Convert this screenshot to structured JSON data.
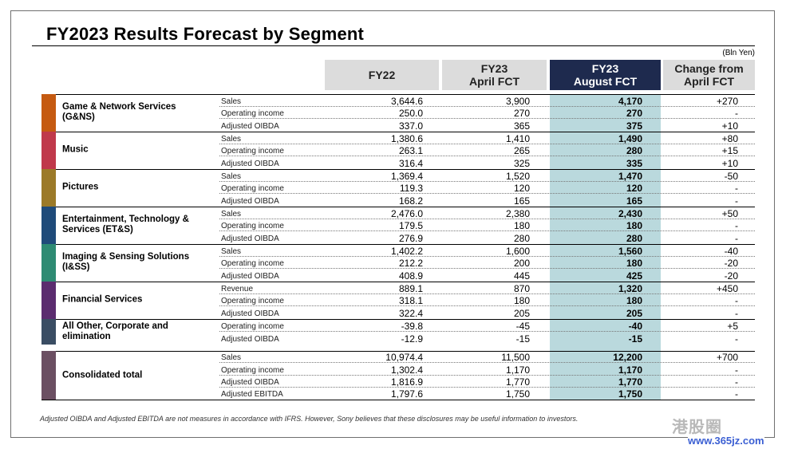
{
  "title": "FY2023 Results Forecast by Segment",
  "unit": "(Bln Yen)",
  "headers": {
    "fy22": "FY22",
    "apr_line1": "FY23",
    "apr_line2": "April FCT",
    "aug_line1": "FY23",
    "aug_line2": "August FCT",
    "chg_line1": "Change from",
    "chg_line2": "April FCT"
  },
  "colors": {
    "header_gray": "#dcdcdc",
    "header_navy": "#1e2a4e",
    "highlight_column": "#bad9dd"
  },
  "segments": [
    {
      "name_line1": "Game & Network Services",
      "name_line2": "(G&NS)",
      "color": "#c55a11",
      "rows": [
        {
          "label": "Sales",
          "fy22": "3,644.6",
          "apr": "3,900",
          "aug": "4,170",
          "chg": "+270"
        },
        {
          "label": "Operating income",
          "fy22": "250.0",
          "apr": "270",
          "aug": "270",
          "chg": "-"
        },
        {
          "label": "Adjusted OIBDA",
          "fy22": "337.0",
          "apr": "365",
          "aug": "375",
          "chg": "+10"
        }
      ]
    },
    {
      "name_line1": "Music",
      "name_line2": "",
      "color": "#c0394b",
      "rows": [
        {
          "label": "Sales",
          "fy22": "1,380.6",
          "apr": "1,410",
          "aug": "1,490",
          "chg": "+80"
        },
        {
          "label": "Operating income",
          "fy22": "263.1",
          "apr": "265",
          "aug": "280",
          "chg": "+15"
        },
        {
          "label": "Adjusted OIBDA",
          "fy22": "316.4",
          "apr": "325",
          "aug": "335",
          "chg": "+10"
        }
      ]
    },
    {
      "name_line1": "Pictures",
      "name_line2": "",
      "color": "#9c7a28",
      "rows": [
        {
          "label": "Sales",
          "fy22": "1,369.4",
          "apr": "1,520",
          "aug": "1,470",
          "chg": "-50"
        },
        {
          "label": "Operating income",
          "fy22": "119.3",
          "apr": "120",
          "aug": "120",
          "chg": "-"
        },
        {
          "label": "Adjusted OIBDA",
          "fy22": "168.2",
          "apr": "165",
          "aug": "165",
          "chg": "-"
        }
      ]
    },
    {
      "name_line1": "Entertainment, Technology &",
      "name_line2": "Services (ET&S)",
      "color": "#1f4b7a",
      "rows": [
        {
          "label": "Sales",
          "fy22": "2,476.0",
          "apr": "2,380",
          "aug": "2,430",
          "chg": "+50"
        },
        {
          "label": "Operating income",
          "fy22": "179.5",
          "apr": "180",
          "aug": "180",
          "chg": "-"
        },
        {
          "label": "Adjusted OIBDA",
          "fy22": "276.9",
          "apr": "280",
          "aug": "280",
          "chg": "-"
        }
      ]
    },
    {
      "name_line1": "Imaging & Sensing Solutions",
      "name_line2": "(I&SS)",
      "color": "#2e8b73",
      "rows": [
        {
          "label": "Sales",
          "fy22": "1,402.2",
          "apr": "1,600",
          "aug": "1,560",
          "chg": "-40"
        },
        {
          "label": "Operating income",
          "fy22": "212.2",
          "apr": "200",
          "aug": "180",
          "chg": "-20"
        },
        {
          "label": "Adjusted OIBDA",
          "fy22": "408.9",
          "apr": "445",
          "aug": "425",
          "chg": "-20"
        }
      ]
    },
    {
      "name_line1": "Financial Services",
      "name_line2": "",
      "color": "#5b2c6f",
      "rows": [
        {
          "label": "Revenue",
          "fy22": "889.1",
          "apr": "870",
          "aug": "1,320",
          "chg": "+450"
        },
        {
          "label": "Operating income",
          "fy22": "318.1",
          "apr": "180",
          "aug": "180",
          "chg": "-"
        },
        {
          "label": "Adjusted OIBDA",
          "fy22": "322.4",
          "apr": "205",
          "aug": "205",
          "chg": "-"
        }
      ]
    },
    {
      "name_line1": "All Other, Corporate and",
      "name_line2": "elimination",
      "color": "#3a4d63",
      "rows": [
        {
          "label": "Operating income",
          "fy22": "-39.8",
          "apr": "-45",
          "aug": "-40",
          "chg": "+5"
        },
        {
          "label": "Adjusted OIBDA",
          "fy22": "-12.9",
          "apr": "-15",
          "aug": "-15",
          "chg": "-"
        }
      ]
    },
    {
      "name_line1": "Consolidated total",
      "name_line2": "",
      "color": "#6b4f62",
      "rows": [
        {
          "label": "Sales",
          "fy22": "10,974.4",
          "apr": "11,500",
          "aug": "12,200",
          "chg": "+700"
        },
        {
          "label": "Operating income",
          "fy22": "1,302.4",
          "apr": "1,170",
          "aug": "1,170",
          "chg": "-"
        },
        {
          "label": "Adjusted OIBDA",
          "fy22": "1,816.9",
          "apr": "1,770",
          "aug": "1,770",
          "chg": "-"
        },
        {
          "label": "Adjusted EBITDA",
          "fy22": "1,797.6",
          "apr": "1,750",
          "aug": "1,750",
          "chg": "-"
        }
      ]
    }
  ],
  "footnote": "Adjusted OIBDA and Adjusted EBITDA are not measures in accordance with IFRS.  However, Sony believes that these disclosures may be useful information to investors.",
  "watermark": "港股圈",
  "watermark_url": "www.365jz.com"
}
